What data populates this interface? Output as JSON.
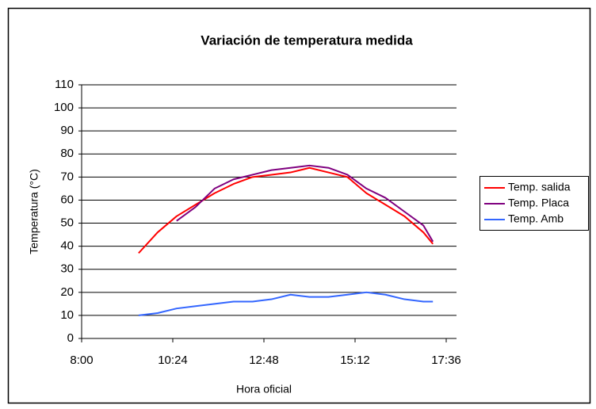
{
  "chart_data": {
    "type": "line",
    "title": "Variación de temperatura medida",
    "x_label": "Hora oficial",
    "y_label": "Temperatura (°C)",
    "x": [
      570,
      600,
      630,
      660,
      690,
      720,
      750,
      780,
      810,
      840,
      870,
      900,
      930,
      960,
      990,
      1020,
      1035
    ],
    "series": [
      {
        "name": "Temp. salida",
        "color": "#ff0000",
        "values": [
          37,
          46,
          53,
          58,
          63,
          67,
          70,
          71,
          72,
          74,
          72,
          70,
          63,
          58,
          53,
          46,
          41
        ]
      },
      {
        "name": "Temp. Placa",
        "color": "#7f007f",
        "values": [
          null,
          null,
          51,
          57,
          65,
          69,
          71,
          73,
          74,
          75,
          74,
          71,
          65,
          61,
          55,
          49,
          42
        ]
      },
      {
        "name": "Temp. Amb",
        "color": "#3366ff",
        "values": [
          10,
          11,
          13,
          14,
          15,
          16,
          16,
          17,
          19,
          18,
          18,
          19,
          20,
          19,
          17,
          16,
          16
        ]
      }
    ],
    "xlim": [
      480,
      1056
    ],
    "xticks": [
      {
        "value": 480,
        "label": "8:00"
      },
      {
        "value": 624,
        "label": "10:24"
      },
      {
        "value": 768,
        "label": "12:48"
      },
      {
        "value": 912,
        "label": "15:12"
      },
      {
        "value": 1056,
        "label": "17:36"
      }
    ],
    "ylim": [
      0,
      110
    ],
    "yticks": [
      0,
      10,
      20,
      30,
      40,
      50,
      60,
      70,
      80,
      90,
      100,
      110
    ],
    "grid": true,
    "legend": "right"
  }
}
